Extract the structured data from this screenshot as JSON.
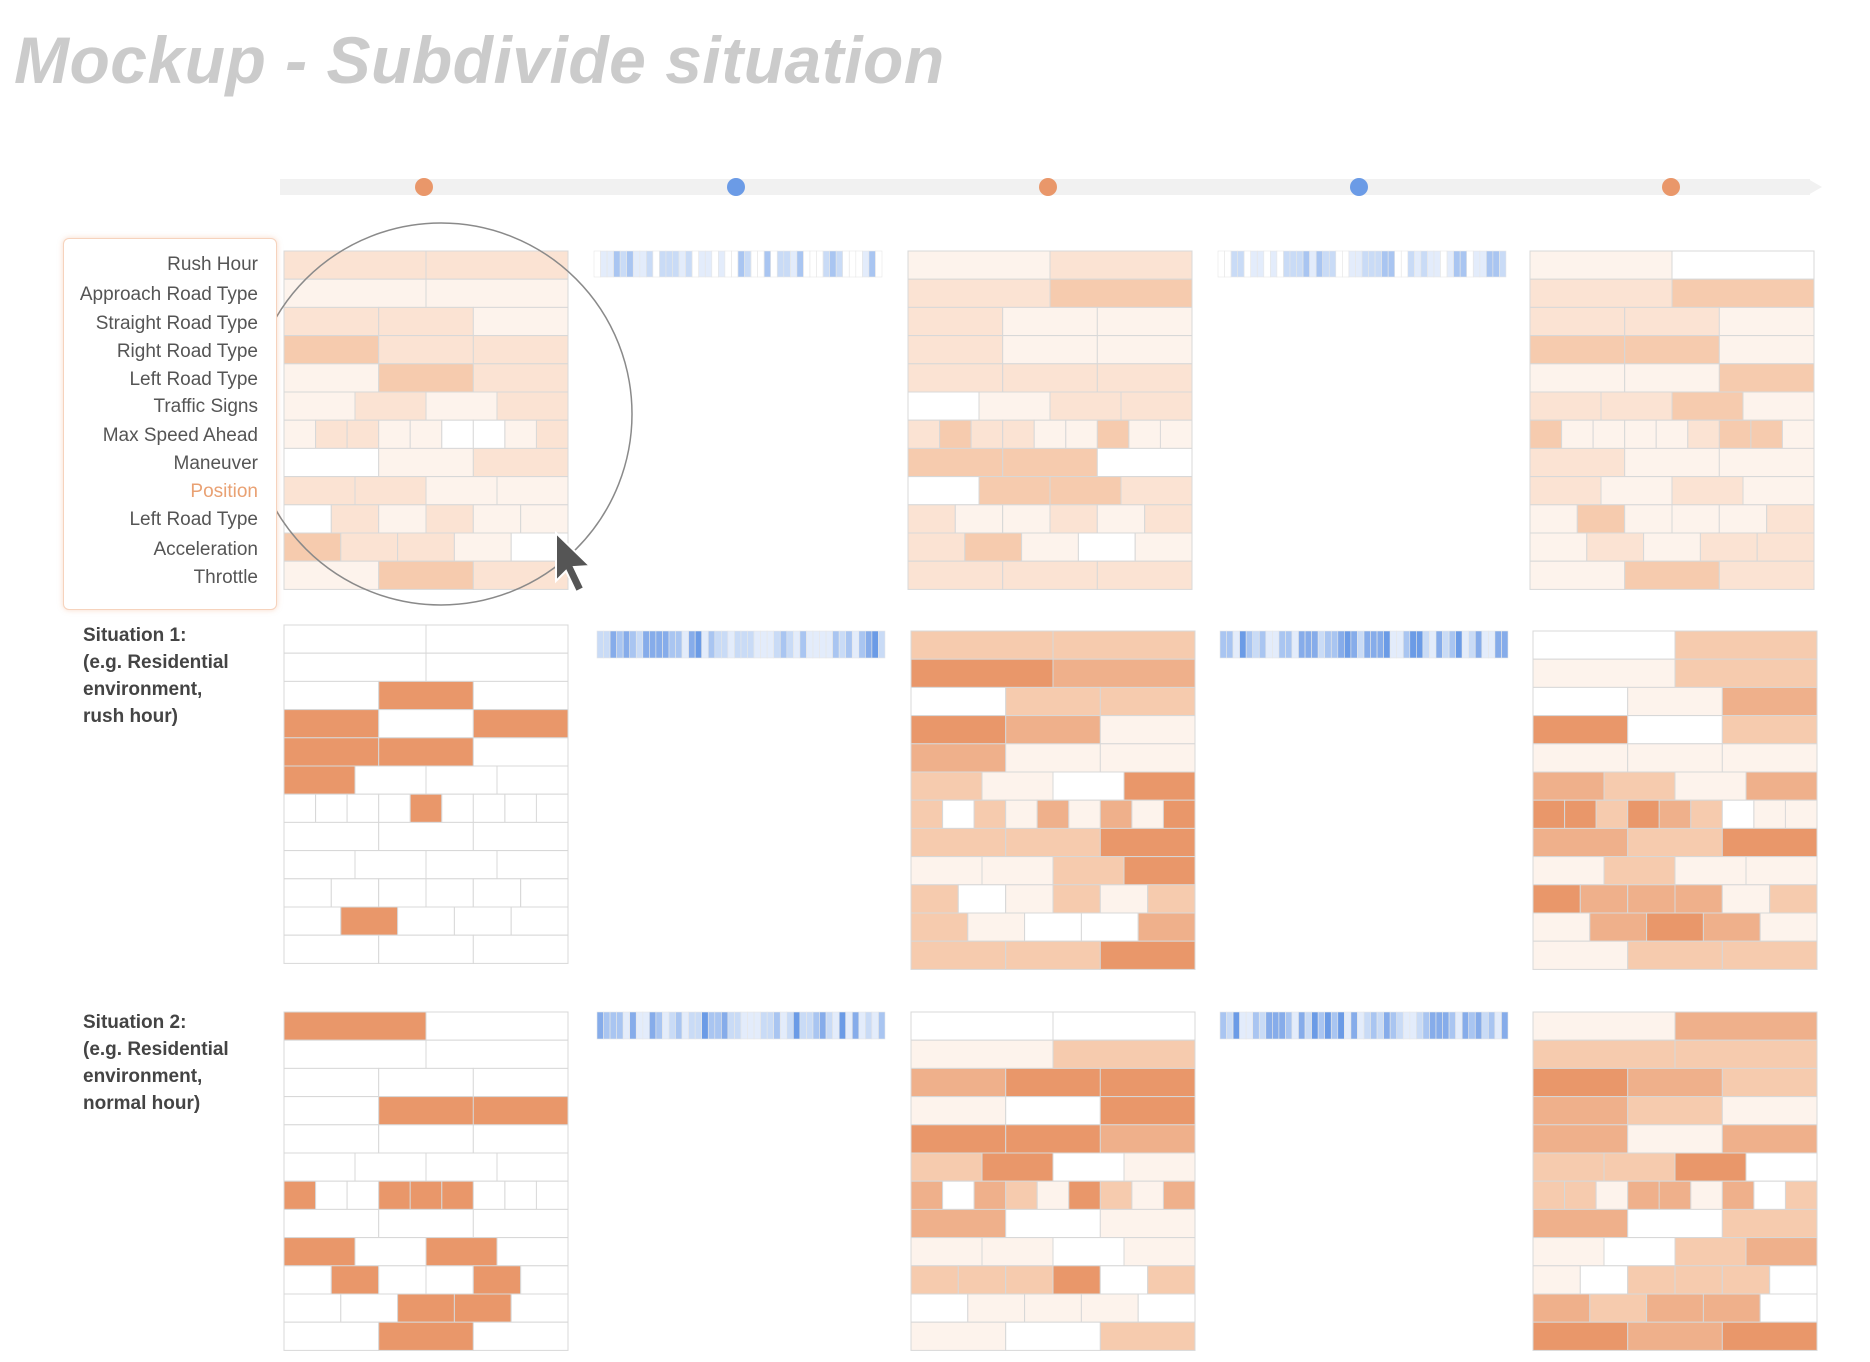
{
  "title": "Mockup - Subdivide situation",
  "colors": {
    "orange": "#e9976a",
    "blue": "#6b9be6",
    "timeline": "#f1f1f1",
    "highlight": "#e9a173"
  },
  "timeline": {
    "markers": [
      "orange",
      "blue",
      "orange",
      "blue",
      "orange"
    ]
  },
  "feature_labels": [
    "Rush Hour",
    "Approach Road Type",
    "Straight Road Type",
    "Right Road Type",
    "Left Road Type",
    "Traffic Signs",
    "Max Speed Ahead",
    "Maneuver",
    "Position",
    "Left Road Type",
    "Acceleration",
    "Throttle"
  ],
  "highlighted_label": "Position",
  "situations": [
    {
      "lines": [
        "Situation 1:",
        "(e.g. Residential",
        "environment,",
        "rush hour)"
      ]
    },
    {
      "lines": [
        "Situation 2:",
        "(e.g. Residential",
        "environment,",
        "normal hour)"
      ]
    }
  ],
  "matrix": {
    "row_segments": [
      2,
      2,
      3,
      3,
      3,
      4,
      9,
      3,
      4,
      6,
      5,
      3
    ],
    "intensity_levels": [
      "#ffffff",
      "#fdf3ec",
      "#fbe3d3",
      "#f6cbae",
      "#efb08b",
      "#e9976a"
    ]
  },
  "icons": [
    "cursor-arrow-icon",
    "magnifier-circle-icon"
  ]
}
